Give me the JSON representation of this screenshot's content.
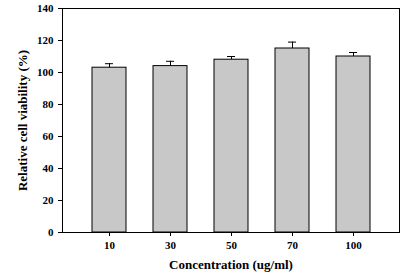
{
  "chart_data": {
    "type": "bar",
    "x_label": "Concentration (ug/ml)",
    "y_label": "Relative cell viability (%)",
    "categories": [
      "10",
      "30",
      "50",
      "70",
      "100"
    ],
    "values": [
      103,
      104,
      108,
      115,
      110
    ],
    "error": [
      2.5,
      3,
      2,
      4,
      2.5
    ],
    "color": "#c8c8c8",
    "ylim": [
      0,
      140
    ],
    "yticks": [
      0,
      20,
      40,
      60,
      80,
      100,
      120,
      140
    ],
    "grid": false
  }
}
